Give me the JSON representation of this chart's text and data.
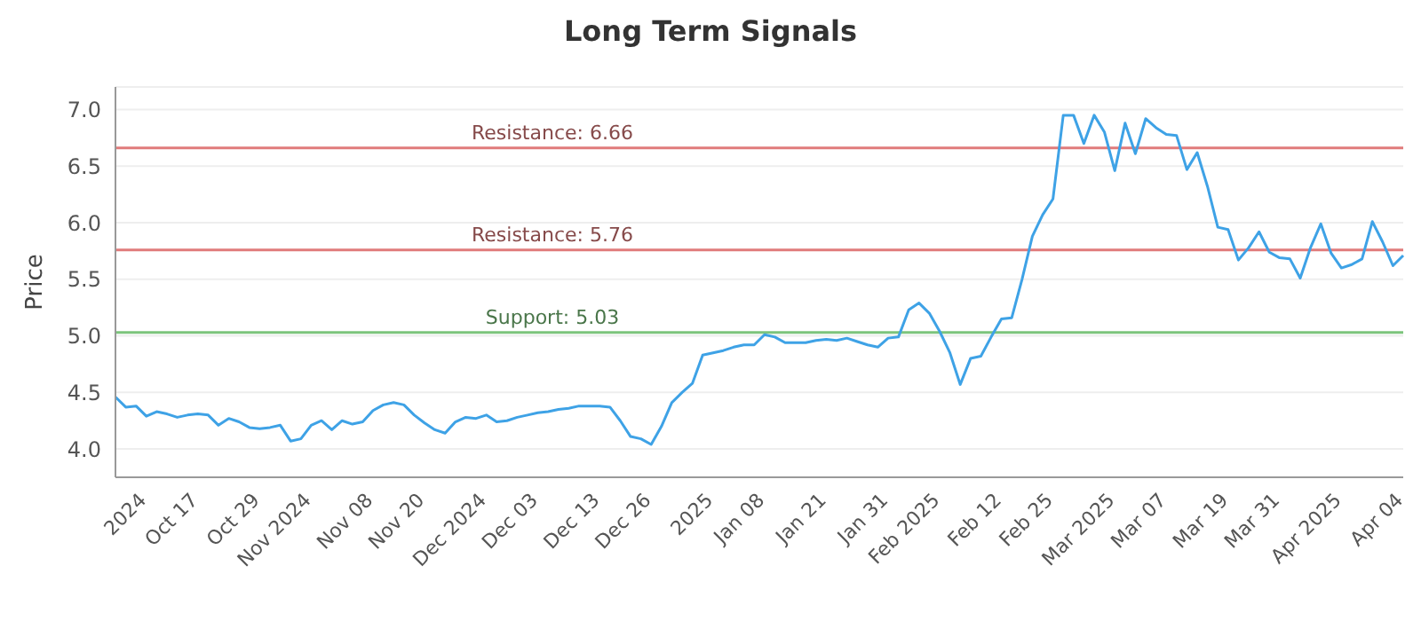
{
  "chart_data": {
    "type": "line",
    "title": "Long Term Signals",
    "ylabel": "Price",
    "categories": [
      null,
      null,
      null,
      "2024",
      null,
      null,
      null,
      null,
      "Oct 17",
      null,
      null,
      null,
      null,
      null,
      "Oct 29",
      null,
      null,
      null,
      null,
      "Nov 2024",
      null,
      null,
      null,
      null,
      null,
      "Nov 08",
      null,
      null,
      null,
      null,
      "Nov 20",
      null,
      null,
      null,
      null,
      null,
      "Dec 2024",
      null,
      null,
      null,
      null,
      "Dec 03",
      null,
      null,
      null,
      null,
      null,
      "Dec 13",
      null,
      null,
      null,
      null,
      "Dec 26",
      null,
      null,
      null,
      null,
      null,
      "2025",
      null,
      null,
      null,
      null,
      "Jan 08",
      null,
      null,
      null,
      null,
      null,
      "Jan 21",
      null,
      null,
      null,
      null,
      null,
      "Jan 31",
      null,
      null,
      null,
      null,
      "Feb 2025",
      null,
      null,
      null,
      null,
      null,
      "Feb 12",
      null,
      null,
      null,
      null,
      "Feb 25",
      null,
      null,
      null,
      null,
      null,
      "Mar 2025",
      null,
      null,
      null,
      null,
      "Mar 07",
      null,
      null,
      null,
      null,
      null,
      "Mar 19",
      null,
      null,
      null,
      null,
      "Mar 31",
      null,
      null,
      null,
      null,
      null,
      "Apr 2025",
      null,
      null,
      null,
      null,
      null,
      "Apr 04"
    ],
    "series": [
      {
        "color": "#3ea2e6",
        "values": [
          4.46,
          4.37,
          4.38,
          4.29,
          4.33,
          4.31,
          4.28,
          4.3,
          4.31,
          4.3,
          4.21,
          4.27,
          4.24,
          4.19,
          4.18,
          4.19,
          4.21,
          4.07,
          4.09,
          4.21,
          4.25,
          4.17,
          4.25,
          4.22,
          4.24,
          4.34,
          4.39,
          4.41,
          4.39,
          4.3,
          4.23,
          4.17,
          4.14,
          4.24,
          4.28,
          4.27,
          4.3,
          4.24,
          4.25,
          4.28,
          4.3,
          4.32,
          4.33,
          4.35,
          4.36,
          4.38,
          4.38,
          4.38,
          4.37,
          4.25,
          4.11,
          4.09,
          4.04,
          4.2,
          4.41,
          4.5,
          4.58,
          4.83,
          4.85,
          4.87,
          4.9,
          4.92,
          4.92,
          5.01,
          4.99,
          4.94,
          4.94,
          4.94,
          4.96,
          4.97,
          4.96,
          4.98,
          4.95,
          4.92,
          4.9,
          4.98,
          4.99,
          5.23,
          5.29,
          5.2,
          5.04,
          4.85,
          4.57,
          4.8,
          4.82,
          4.99,
          5.15,
          5.16,
          5.5,
          5.88,
          6.07,
          6.21,
          6.95,
          6.95,
          6.7,
          6.95,
          6.8,
          6.46,
          6.88,
          6.61,
          6.92,
          6.84,
          6.78,
          6.77,
          6.47,
          6.62,
          6.32,
          5.96,
          5.94,
          5.67,
          5.78,
          5.92,
          5.74,
          5.69,
          5.68,
          5.51,
          5.78,
          5.99,
          5.73,
          5.6,
          5.63,
          5.68,
          6.01,
          5.83,
          5.62,
          5.71
        ]
      }
    ],
    "ylim": [
      3.75,
      7.2
    ],
    "yticks": [
      {
        "value": 4,
        "label": "4.0"
      },
      {
        "value": 4.5,
        "label": "4.5"
      },
      {
        "value": 5,
        "label": "5.0"
      },
      {
        "value": 5.5,
        "label": "5.5"
      },
      {
        "value": 6,
        "label": "6.0"
      },
      {
        "value": 6.5,
        "label": "6.5"
      },
      {
        "value": 7,
        "label": "7.0"
      }
    ],
    "grid": "y",
    "legend": false,
    "marker": "none",
    "line_style": "solid",
    "ref_lines": [
      {
        "axis": "y",
        "value": 6.66,
        "label": "Resistance: 6.66",
        "color": "#e07b7b"
      },
      {
        "axis": "y",
        "value": 5.76,
        "label": "Resistance: 5.76",
        "color": "#e07b7b"
      },
      {
        "axis": "y",
        "value": 5.03,
        "label": "Support: 5.03",
        "color": "#7cc47c"
      }
    ]
  }
}
